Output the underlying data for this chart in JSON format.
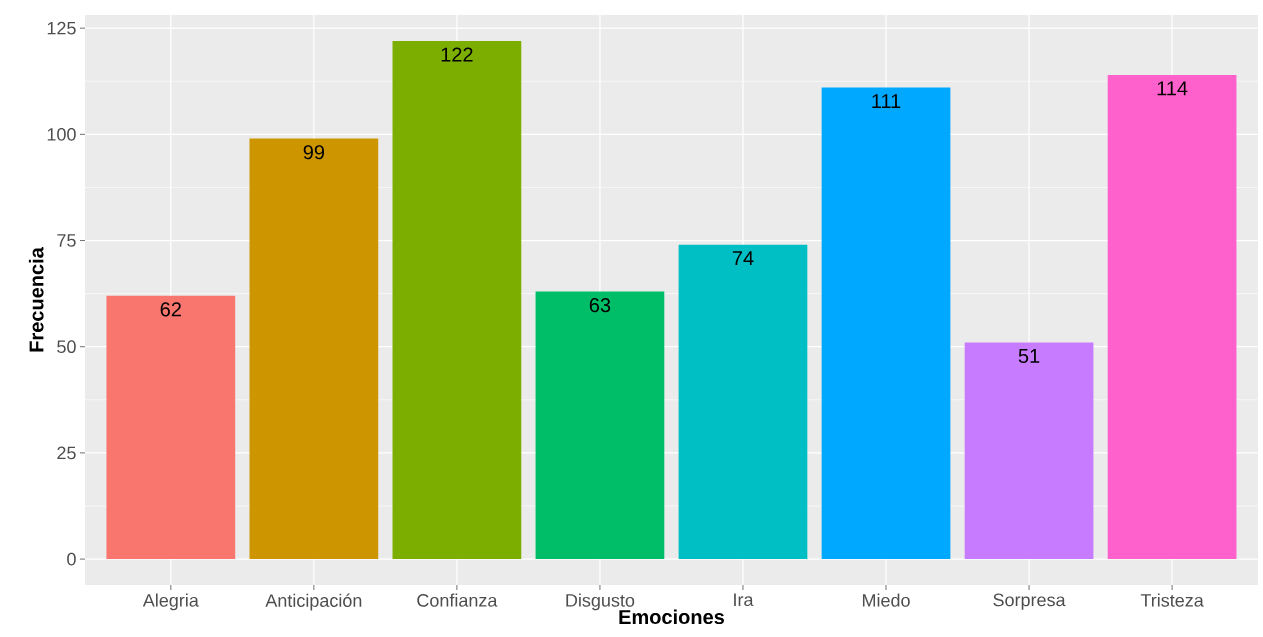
{
  "chart_data": {
    "type": "bar",
    "xlabel": "Emociones",
    "ylabel": "Frecuencia",
    "categories": [
      "Alegria",
      "Anticipación",
      "Confianza",
      "Disgusto",
      "Ira",
      "Miedo",
      "Sorpresa",
      "Tristeza"
    ],
    "values": [
      62,
      99,
      122,
      63,
      74,
      111,
      51,
      114
    ],
    "colors": [
      "#f8766d",
      "#cd9600",
      "#7cae00",
      "#00be67",
      "#00bfc4",
      "#00a9ff",
      "#c77cff",
      "#ff61cc"
    ],
    "ylim": [
      -6.1,
      128.1
    ],
    "yticks": [
      0,
      25,
      50,
      75,
      100,
      125
    ],
    "grid": true,
    "data_labels": true
  }
}
